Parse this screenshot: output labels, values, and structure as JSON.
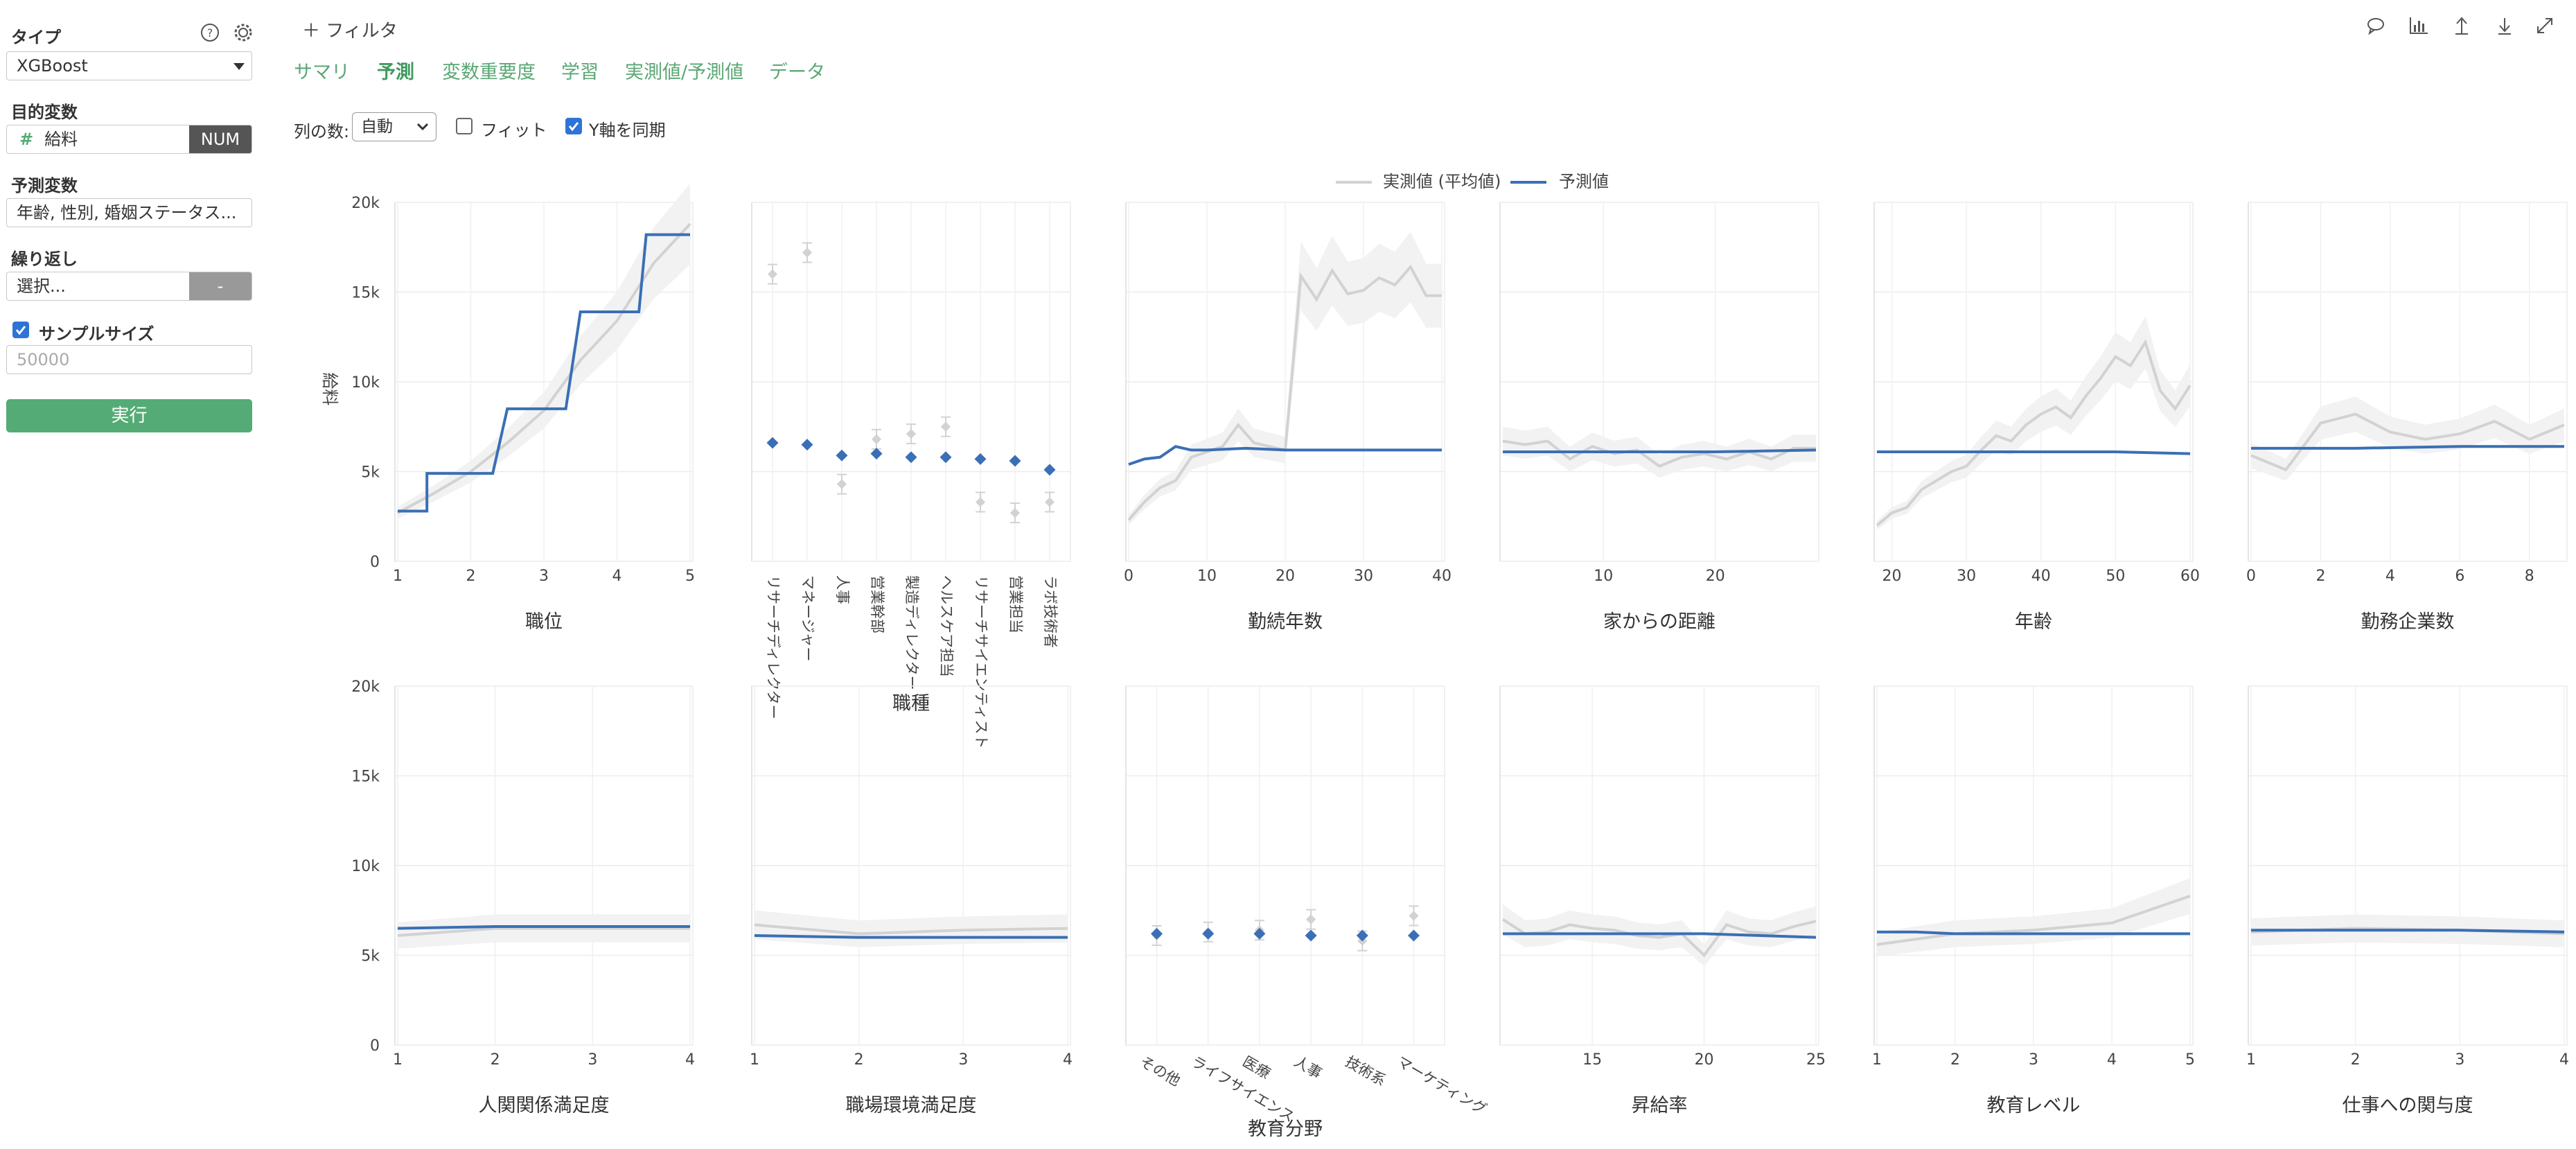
{
  "sidebar": {
    "type_label": "タイプ",
    "type_value": "XGBoost",
    "target_label": "目的変数",
    "target_value": "給料",
    "target_badge": "NUM",
    "predictors_label": "予測変数",
    "predictors_value": "年齢, 性別, 婚姻ステータス...",
    "repeat_label": "繰り返し",
    "repeat_placeholder": "選択...",
    "repeat_button": "-",
    "sample_label": "サンプルサイズ",
    "sample_placeholder": "50000",
    "run_button": "実行"
  },
  "header": {
    "filter_label": "＋ フィルタ",
    "tabs": [
      {
        "label": "サマリ"
      },
      {
        "label": "予測"
      },
      {
        "label": "変数重要度"
      },
      {
        "label": "学習"
      },
      {
        "label": "実測値/予測値"
      },
      {
        "label": "データ"
      }
    ],
    "active_tab": "予測",
    "toolbar_icons": [
      "comment-icon",
      "chart-icon",
      "upload-icon",
      "download-icon",
      "expand-icon"
    ]
  },
  "controls": {
    "columns_label": "列の数:",
    "columns_value": "自動",
    "fit_label": "フィット",
    "fit_checked": false,
    "sync_y_label": "Y軸を同期",
    "sync_y_checked": true
  },
  "colors": {
    "accent": "#55ab75",
    "predicted": "#3a6fb5",
    "actual": "#d2d2d2"
  },
  "chart_data": [
    {
      "type": "line",
      "xlabel": "職位",
      "ylabel": "給料",
      "ylim": [
        0,
        20000
      ],
      "xlim": [
        1,
        5
      ],
      "xticks": [
        "1",
        "2",
        "3",
        "4",
        "5"
      ],
      "yticks": [
        "0",
        "5k",
        "10k",
        "15k",
        "20k"
      ],
      "series": [
        {
          "name": "実測値 (平均値)",
          "x": [
            1,
            1.5,
            2,
            2.5,
            3,
            3.5,
            4,
            4.5,
            5
          ],
          "values": [
            2700,
            3800,
            5000,
            6600,
            8400,
            11200,
            13400,
            16600,
            18800
          ]
        },
        {
          "name": "予測値",
          "x": [
            1,
            1.4,
            1.4,
            2.3,
            2.5,
            3.3,
            3.5,
            4.3,
            4.4,
            5
          ],
          "values": [
            2800,
            2800,
            4900,
            4900,
            8500,
            8500,
            13900,
            13900,
            18200,
            18200
          ]
        }
      ]
    },
    {
      "type": "scatter",
      "xlabel": "職種",
      "ylim": [
        0,
        20000
      ],
      "categories": [
        "リサーチディレクター",
        "マネージャー",
        "人事",
        "営業幹部",
        "製造ディレクター",
        "ヘルスケア担当",
        "リサーチサイエンティスト",
        "営業担当",
        "ラボ技術者"
      ],
      "series": [
        {
          "name": "実測値 (平均値)",
          "values": [
            16000,
            17200,
            4300,
            6800,
            7100,
            7500,
            3300,
            2700,
            3300
          ]
        },
        {
          "name": "予測値",
          "values": [
            6600,
            6500,
            5900,
            6000,
            5800,
            5800,
            5700,
            5600,
            5100
          ]
        }
      ]
    },
    {
      "type": "line",
      "xlabel": "勤続年数",
      "ylim": [
        0,
        20000
      ],
      "xlim": [
        0,
        40
      ],
      "xticks": [
        "0",
        "10",
        "20",
        "30",
        "40"
      ],
      "series": [
        {
          "name": "実測値 (平均値)",
          "x": [
            0,
            2,
            4,
            6,
            8,
            10,
            12,
            14,
            16,
            18,
            20,
            22,
            24,
            26,
            28,
            30,
            32,
            34,
            36,
            38,
            40
          ],
          "values": [
            2300,
            3300,
            4100,
            4500,
            5800,
            6100,
            6400,
            7600,
            6600,
            6400,
            6200,
            15900,
            14600,
            16200,
            14900,
            15100,
            15800,
            15400,
            16400,
            14800,
            14800
          ]
        },
        {
          "name": "予測値",
          "x": [
            0,
            2,
            4,
            6,
            8,
            10,
            15,
            20,
            25,
            30,
            35,
            40
          ],
          "values": [
            5400,
            5700,
            5800,
            6400,
            6200,
            6200,
            6300,
            6200,
            6200,
            6200,
            6200,
            6200
          ]
        }
      ]
    },
    {
      "type": "line",
      "xlabel": "家からの距離",
      "ylim": [
        0,
        20000
      ],
      "xlim": [
        1,
        29
      ],
      "xticks": [
        "10",
        "20"
      ],
      "series": [
        {
          "name": "実測値 (平均値)",
          "x": [
            1,
            3,
            5,
            7,
            9,
            11,
            13,
            15,
            17,
            19,
            21,
            23,
            25,
            27,
            29
          ],
          "values": [
            6700,
            6500,
            6700,
            5700,
            6400,
            6000,
            6200,
            5300,
            5800,
            6000,
            5700,
            6100,
            5700,
            6300,
            6300
          ]
        },
        {
          "name": "予測値",
          "x": [
            1,
            10,
            20,
            29
          ],
          "values": [
            6100,
            6100,
            6100,
            6200
          ]
        }
      ]
    },
    {
      "type": "line",
      "xlabel": "年齢",
      "ylim": [
        0,
        20000
      ],
      "xlim": [
        18,
        60
      ],
      "xticks": [
        "20",
        "30",
        "40",
        "50",
        "60"
      ],
      "series": [
        {
          "name": "実測値 (平均値)",
          "x": [
            18,
            20,
            22,
            24,
            26,
            28,
            30,
            32,
            34,
            36,
            38,
            40,
            42,
            44,
            46,
            48,
            50,
            52,
            54,
            56,
            58,
            60
          ],
          "values": [
            2000,
            2700,
            3000,
            4000,
            4500,
            5000,
            5300,
            6200,
            7000,
            6700,
            7600,
            8200,
            8600,
            8000,
            9200,
            10200,
            11400,
            10900,
            12200,
            9500,
            8500,
            9800
          ]
        },
        {
          "name": "予測値",
          "x": [
            18,
            30,
            40,
            50,
            60
          ],
          "values": [
            6100,
            6100,
            6100,
            6100,
            6000
          ]
        }
      ]
    },
    {
      "type": "line",
      "xlabel": "勤務企業数",
      "ylim": [
        0,
        20000
      ],
      "xlim": [
        0,
        9
      ],
      "xticks": [
        "0",
        "2",
        "4",
        "6",
        "8"
      ],
      "series": [
        {
          "name": "実測値 (平均値)",
          "x": [
            0,
            1,
            2,
            3,
            4,
            5,
            6,
            7,
            8,
            9
          ],
          "values": [
            5900,
            5100,
            7700,
            8200,
            7200,
            6800,
            7100,
            7800,
            6800,
            7600
          ]
        },
        {
          "name": "予測値",
          "x": [
            0,
            3,
            6,
            9
          ],
          "values": [
            6300,
            6300,
            6400,
            6400
          ]
        }
      ]
    },
    {
      "type": "line",
      "xlabel": "人関関係満足度",
      "ylim": [
        0,
        20000
      ],
      "xlim": [
        1,
        4
      ],
      "xticks": [
        "1",
        "2",
        "3",
        "4"
      ],
      "series": [
        {
          "name": "実測値 (平均値)",
          "x": [
            1,
            2,
            3,
            4
          ],
          "values": [
            6100,
            6500,
            6500,
            6500
          ]
        },
        {
          "name": "予測値",
          "x": [
            1,
            2,
            3,
            4
          ],
          "values": [
            6500,
            6600,
            6600,
            6600
          ]
        }
      ]
    },
    {
      "type": "line",
      "xlabel": "職場環境満足度",
      "ylim": [
        0,
        20000
      ],
      "xlim": [
        1,
        4
      ],
      "xticks": [
        "1",
        "2",
        "3",
        "4"
      ],
      "series": [
        {
          "name": "実測値 (平均値)",
          "x": [
            1,
            2,
            3,
            4
          ],
          "values": [
            6700,
            6200,
            6400,
            6500
          ]
        },
        {
          "name": "予測値",
          "x": [
            1,
            2,
            3,
            4
          ],
          "values": [
            6100,
            6000,
            6000,
            6000
          ]
        }
      ]
    },
    {
      "type": "scatter",
      "xlabel": "教育分野",
      "ylim": [
        0,
        20000
      ],
      "categories": [
        "その他",
        "ライフサイエンス",
        "医療",
        "人事",
        "技術系",
        "マーケティング"
      ],
      "series": [
        {
          "name": "実測値 (平均値)",
          "values": [
            6100,
            6300,
            6400,
            7000,
            5800,
            7200
          ]
        },
        {
          "name": "予測値",
          "values": [
            6200,
            6200,
            6200,
            6100,
            6100,
            6100
          ]
        }
      ]
    },
    {
      "type": "line",
      "xlabel": "昇給率",
      "ylim": [
        0,
        20000
      ],
      "xlim": [
        11,
        25
      ],
      "xticks": [
        "15",
        "20",
        "25"
      ],
      "series": [
        {
          "name": "実測値 (平均値)",
          "x": [
            11,
            12,
            13,
            14,
            15,
            16,
            17,
            18,
            19,
            20,
            21,
            22,
            23,
            24,
            25
          ],
          "values": [
            7000,
            6200,
            6300,
            6700,
            6500,
            6400,
            6100,
            6000,
            6200,
            5000,
            6700,
            6300,
            6200,
            6600,
            6900
          ]
        },
        {
          "name": "予測値",
          "x": [
            11,
            15,
            20,
            25
          ],
          "values": [
            6200,
            6200,
            6200,
            6000
          ]
        }
      ]
    },
    {
      "type": "line",
      "xlabel": "教育レベル",
      "ylim": [
        0,
        20000
      ],
      "xlim": [
        1,
        5
      ],
      "xticks": [
        "1",
        "2",
        "3",
        "4",
        "5"
      ],
      "series": [
        {
          "name": "実測値 (平均値)",
          "x": [
            1,
            2,
            3,
            4,
            5
          ],
          "values": [
            5600,
            6200,
            6400,
            6800,
            8300
          ]
        },
        {
          "name": "予測値",
          "x": [
            1,
            1.5,
            2,
            3,
            4,
            5
          ],
          "values": [
            6300,
            6300,
            6200,
            6200,
            6200,
            6200
          ]
        }
      ]
    },
    {
      "type": "line",
      "xlabel": "仕事への関与度",
      "ylim": [
        0,
        20000
      ],
      "xlim": [
        1,
        4
      ],
      "xticks": [
        "1",
        "2",
        "3",
        "4"
      ],
      "series": [
        {
          "name": "実測値 (平均値)",
          "x": [
            1,
            2,
            3,
            4
          ],
          "values": [
            6300,
            6500,
            6400,
            6200
          ]
        },
        {
          "name": "予測値",
          "x": [
            1,
            2,
            3,
            4
          ],
          "values": [
            6400,
            6400,
            6400,
            6300
          ]
        }
      ]
    }
  ]
}
